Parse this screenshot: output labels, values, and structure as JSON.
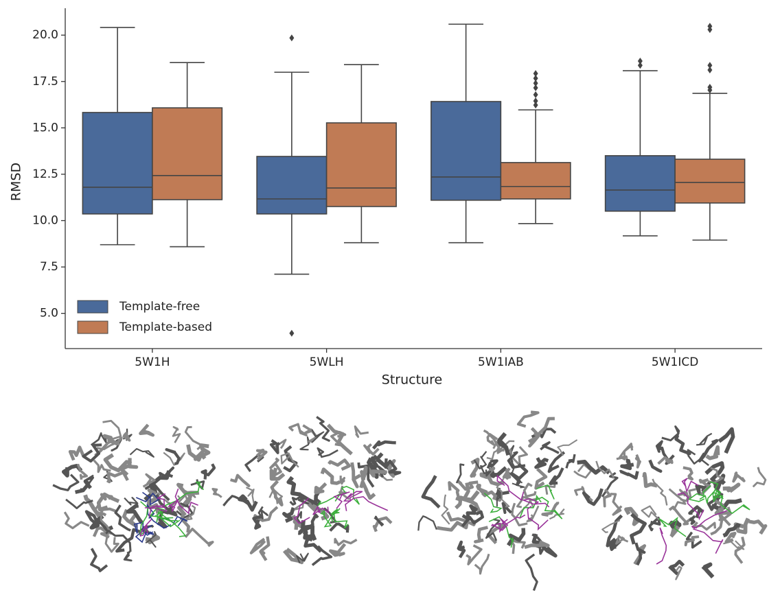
{
  "chart_data": {
    "type": "box",
    "x_label": "Structure",
    "y_label": "RMSD",
    "categories": [
      "5W1H",
      "5WLH",
      "5W1IAB",
      "5W1ICD"
    ],
    "ylim": [
      3.1,
      21.45
    ],
    "yticks": [
      {
        "value": 5,
        "label": "5.0"
      },
      7.5,
      {
        "value": 10,
        "label": "10.0"
      },
      12.5,
      {
        "value": 15,
        "label": "15.0"
      },
      17.5,
      {
        "value": 20,
        "label": "20.0"
      }
    ],
    "legend": "lower left",
    "series": [
      {
        "name": "Template-free",
        "color": "#4a6a9a",
        "boxes": [
          {
            "low": 8.7,
            "q1": 10.36,
            "median": 11.8,
            "q3": 15.83,
            "high": 20.41,
            "outliers": []
          },
          {
            "low": 7.11,
            "q1": 10.36,
            "median": 11.17,
            "q3": 13.46,
            "high": 18.0,
            "outliers": [
              19.85,
              3.93
            ]
          },
          {
            "low": 8.81,
            "q1": 11.1,
            "median": 12.35,
            "q3": 16.42,
            "high": 20.59,
            "outliers": []
          },
          {
            "low": 9.18,
            "q1": 10.51,
            "median": 11.65,
            "q3": 13.5,
            "high": 18.08,
            "outliers": [
              18.6,
              18.37
            ]
          }
        ]
      },
      {
        "name": "Template-based",
        "color": "#c07b55",
        "boxes": [
          {
            "low": 8.59,
            "q1": 11.13,
            "median": 12.43,
            "q3": 16.08,
            "high": 18.52,
            "outliers": []
          },
          {
            "low": 8.81,
            "q1": 10.76,
            "median": 11.76,
            "q3": 15.27,
            "high": 18.41,
            "outliers": []
          },
          {
            "low": 9.84,
            "q1": 11.17,
            "median": 11.84,
            "q3": 13.13,
            "high": 15.97,
            "outliers": [
              17.93,
              17.67,
              17.41,
              17.16,
              16.79,
              16.45,
              16.23
            ]
          },
          {
            "low": 8.95,
            "q1": 10.95,
            "median": 12.06,
            "q3": 13.31,
            "high": 16.86,
            "outliers": [
              20.48,
              20.3,
              18.37,
              18.12,
              17.19,
              17.04
            ]
          }
        ]
      }
    ]
  }
}
